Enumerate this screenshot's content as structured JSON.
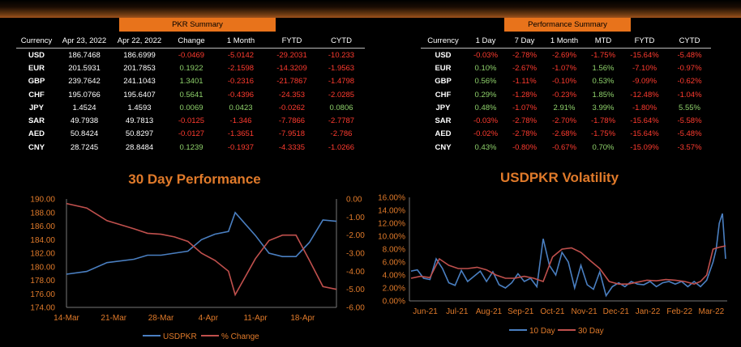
{
  "pkr": {
    "title": "PKR Summary",
    "headers": [
      "Currency",
      "Apr 23, 2022",
      "Apr 22, 2022",
      "Change",
      "1 Month",
      "FYTD",
      "CYTD"
    ],
    "rows": [
      {
        "cur": "USD",
        "a": "186.7468",
        "b": "186.6999",
        "c": "-0.0469",
        "m": "-5.0142",
        "f": "-29.2031",
        "y": "-10.233"
      },
      {
        "cur": "EUR",
        "a": "201.5931",
        "b": "201.7853",
        "c": "0.1922",
        "m": "-2.1598",
        "f": "-14.3209",
        "y": "-1.9563"
      },
      {
        "cur": "GBP",
        "a": "239.7642",
        "b": "241.1043",
        "c": "1.3401",
        "m": "-0.2316",
        "f": "-21.7867",
        "y": "-1.4798"
      },
      {
        "cur": "CHF",
        "a": "195.0766",
        "b": "195.6407",
        "c": "0.5641",
        "m": "-0.4396",
        "f": "-24.353",
        "y": "-2.0285"
      },
      {
        "cur": "JPY",
        "a": "1.4524",
        "b": "1.4593",
        "c": "0.0069",
        "m": "0.0423",
        "f": "-0.0262",
        "y": "0.0806"
      },
      {
        "cur": "SAR",
        "a": "49.7938",
        "b": "49.7813",
        "c": "-0.0125",
        "m": "-1.346",
        "f": "-7.7866",
        "y": "-2.7787"
      },
      {
        "cur": "AED",
        "a": "50.8424",
        "b": "50.8297",
        "c": "-0.0127",
        "m": "-1.3651",
        "f": "-7.9518",
        "y": "-2.786"
      },
      {
        "cur": "CNY",
        "a": "28.7245",
        "b": "28.8484",
        "c": "0.1239",
        "m": "-0.1937",
        "f": "-4.3335",
        "y": "-1.0266"
      }
    ]
  },
  "perf": {
    "title": "Performance Summary",
    "headers": [
      "Currency",
      "1 Day",
      "7 Day",
      "1 Month",
      "MTD",
      "FYTD",
      "CYTD"
    ],
    "rows": [
      {
        "cur": "USD",
        "d1": "-0.03%",
        "d7": "-2.78%",
        "m1": "-2.69%",
        "mtd": "-1.75%",
        "fytd": "-15.64%",
        "cytd": "-5.48%"
      },
      {
        "cur": "EUR",
        "d1": "0.10%",
        "d7": "-2.67%",
        "m1": "-1.07%",
        "mtd": "1.56%",
        "fytd": "-7.10%",
        "cytd": "-0.97%"
      },
      {
        "cur": "GBP",
        "d1": "0.56%",
        "d7": "-1.11%",
        "m1": "-0.10%",
        "mtd": "0.53%",
        "fytd": "-9.09%",
        "cytd": "-0.62%"
      },
      {
        "cur": "CHF",
        "d1": "0.29%",
        "d7": "-1.28%",
        "m1": "-0.23%",
        "mtd": "1.85%",
        "fytd": "-12.48%",
        "cytd": "-1.04%"
      },
      {
        "cur": "JPY",
        "d1": "0.48%",
        "d7": "-1.07%",
        "m1": "2.91%",
        "mtd": "3.99%",
        "fytd": "-1.80%",
        "cytd": "5.55%"
      },
      {
        "cur": "SAR",
        "d1": "-0.03%",
        "d7": "-2.78%",
        "m1": "-2.70%",
        "mtd": "-1.78%",
        "fytd": "-15.64%",
        "cytd": "-5.58%"
      },
      {
        "cur": "AED",
        "d1": "-0.02%",
        "d7": "-2.78%",
        "m1": "-2.68%",
        "mtd": "-1.75%",
        "fytd": "-15.64%",
        "cytd": "-5.48%"
      },
      {
        "cur": "CNY",
        "d1": "0.43%",
        "d7": "-0.80%",
        "m1": "-0.67%",
        "mtd": "0.70%",
        "fytd": "-15.09%",
        "cytd": "-3.57%"
      }
    ]
  },
  "colors": {
    "accent": "#e8731b",
    "title": "#e07a2a",
    "pos": "#8fd26b",
    "neg": "#ff3b2f",
    "blue": "#4a7fc1",
    "red": "#c0504d",
    "axis": "#e07a2a"
  },
  "chart_data": [
    {
      "type": "line",
      "title": "30 Day Performance",
      "x_ticks": [
        "14-Mar",
        "21-Mar",
        "28-Mar",
        "4-Apr",
        "11-Apr",
        "18-Apr"
      ],
      "x_start": "2022-03-14",
      "x_end": "2022-04-23",
      "y_left": {
        "min": 174,
        "max": 190,
        "ticks": [
          "174.00",
          "176.00",
          "178.00",
          "180.00",
          "182.00",
          "184.00",
          "186.00",
          "188.00",
          "190.00"
        ]
      },
      "y_right": {
        "min": -6,
        "max": 0,
        "ticks": [
          "-6.00",
          "-5.00",
          "-4.00",
          "-3.00",
          "-2.00",
          "-1.00",
          "0.00"
        ]
      },
      "series": [
        {
          "name": "USDPKR",
          "axis": "left",
          "color": "#4a7fc1",
          "x": [
            "2022-03-14",
            "2022-03-17",
            "2022-03-20",
            "2022-03-24",
            "2022-03-26",
            "2022-03-28",
            "2022-03-30",
            "2022-04-01",
            "2022-04-03",
            "2022-04-05",
            "2022-04-07",
            "2022-04-08",
            "2022-04-11",
            "2022-04-13",
            "2022-04-15",
            "2022-04-17",
            "2022-04-19",
            "2022-04-21",
            "2022-04-23"
          ],
          "values": [
            178.9,
            179.3,
            180.6,
            181.1,
            181.7,
            181.7,
            182.0,
            182.3,
            184.0,
            184.8,
            185.2,
            188.0,
            184.6,
            182.0,
            181.5,
            181.5,
            183.6,
            186.9,
            186.7
          ]
        },
        {
          "name": "% Change",
          "axis": "right",
          "color": "#c0504d",
          "x": [
            "2022-03-14",
            "2022-03-17",
            "2022-03-20",
            "2022-03-24",
            "2022-03-26",
            "2022-03-28",
            "2022-03-30",
            "2022-04-01",
            "2022-04-03",
            "2022-04-05",
            "2022-04-07",
            "2022-04-08",
            "2022-04-11",
            "2022-04-13",
            "2022-04-15",
            "2022-04-17",
            "2022-04-19",
            "2022-04-21",
            "2022-04-23"
          ],
          "values": [
            -0.25,
            -0.5,
            -1.2,
            -1.65,
            -1.9,
            -1.95,
            -2.1,
            -2.35,
            -3.0,
            -3.4,
            -4.0,
            -5.3,
            -3.3,
            -2.3,
            -2.0,
            -2.0,
            -3.4,
            -4.85,
            -5.0
          ]
        }
      ]
    },
    {
      "type": "line",
      "title": "USDPKR Volatility",
      "x_ticks": [
        "Jun-21",
        "Jul-21",
        "Aug-21",
        "Sep-21",
        "Oct-21",
        "Nov-21",
        "Dec-21",
        "Jan-22",
        "Feb-22",
        "Mar-22"
      ],
      "y": {
        "min": 0,
        "max": 16,
        "ticks": [
          "0.00%",
          "2.00%",
          "4.00%",
          "6.00%",
          "8.00%",
          "10.00%",
          "12.00%",
          "14.00%",
          "16.00%"
        ]
      },
      "series": [
        {
          "name": "10 Day",
          "color": "#4a7fc1",
          "x": [
            0,
            0.2,
            0.4,
            0.6,
            0.8,
            1.0,
            1.2,
            1.4,
            1.6,
            1.8,
            2.0,
            2.2,
            2.4,
            2.6,
            2.8,
            3.0,
            3.2,
            3.4,
            3.6,
            3.8,
            4.0,
            4.2,
            4.4,
            4.6,
            4.8,
            5.0,
            5.2,
            5.4,
            5.6,
            5.8,
            6.0,
            6.2,
            6.4,
            6.6,
            6.8,
            7.0,
            7.2,
            7.4,
            7.6,
            7.8,
            8.0,
            8.2,
            8.4,
            8.6,
            8.8,
            9.0,
            9.2,
            9.4,
            9.6,
            9.7,
            9.8,
            9.9,
            10.0
          ],
          "values": [
            4.6,
            4.8,
            3.5,
            3.3,
            6.5,
            5.0,
            2.8,
            2.4,
            4.7,
            3.0,
            3.8,
            4.6,
            3.0,
            4.5,
            2.5,
            2.0,
            2.8,
            4.2,
            3.0,
            3.5,
            2.2,
            9.6,
            5.5,
            4.0,
            7.5,
            6.0,
            2.0,
            5.5,
            2.5,
            1.8,
            4.5,
            0.8,
            2.2,
            2.8,
            2.2,
            3.0,
            2.6,
            2.5,
            3.0,
            2.2,
            2.8,
            3.0,
            2.6,
            3.0,
            2.2,
            3.0,
            2.2,
            3.2,
            6.0,
            8.0,
            12.0,
            13.5,
            6.5
          ]
        },
        {
          "name": "30 Day",
          "color": "#c0504d",
          "x": [
            0,
            0.3,
            0.6,
            0.9,
            1.2,
            1.5,
            1.8,
            2.1,
            2.4,
            2.7,
            3.0,
            3.3,
            3.6,
            3.9,
            4.2,
            4.5,
            4.8,
            5.1,
            5.4,
            5.7,
            6.0,
            6.3,
            6.6,
            6.9,
            7.2,
            7.5,
            7.8,
            8.1,
            8.4,
            8.7,
            9.0,
            9.2,
            9.4,
            9.6,
            9.8,
            10.0
          ],
          "values": [
            3.5,
            3.8,
            3.6,
            6.5,
            5.5,
            5.0,
            5.0,
            5.2,
            4.8,
            4.0,
            3.5,
            3.5,
            3.8,
            3.5,
            3.0,
            6.8,
            8.0,
            8.2,
            7.5,
            6.2,
            5.0,
            3.0,
            2.6,
            2.6,
            2.9,
            3.2,
            3.1,
            3.3,
            3.2,
            3.0,
            2.6,
            3.0,
            4.0,
            8.0,
            8.3,
            8.5
          ]
        }
      ]
    }
  ]
}
